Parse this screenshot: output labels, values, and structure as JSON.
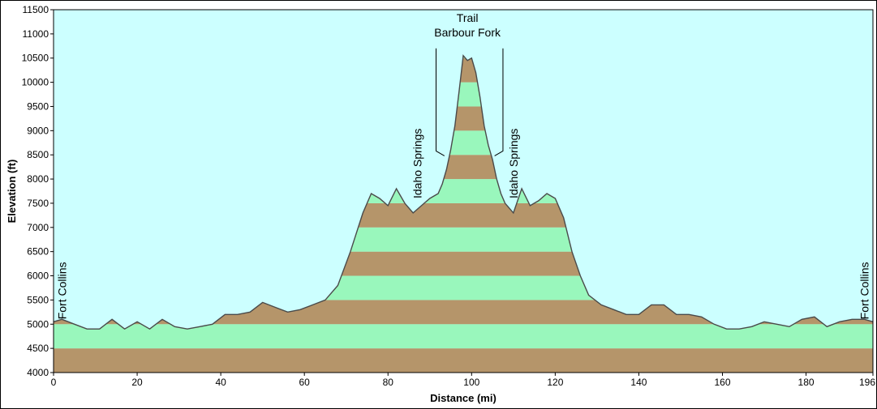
{
  "chart_data": {
    "type": "area",
    "xlabel": "Distance  (mi)",
    "ylabel": "Elevation (ft)",
    "xlim": [
      0,
      196
    ],
    "ylim": [
      4000,
      11500
    ],
    "x_ticks": [
      "0",
      "20",
      "40",
      "60",
      "80",
      "100",
      "120",
      "140",
      "160",
      "180",
      "196"
    ],
    "y_ticks": [
      "4000",
      "4500",
      "5000",
      "5500",
      "6000",
      "6500",
      "7000",
      "7500",
      "8000",
      "8500",
      "9000",
      "9500",
      "10000",
      "10500",
      "11000",
      "11500"
    ],
    "band_interval": 500,
    "grid": false,
    "colors": {
      "background": "#ccffff",
      "band_a": "#b5956a",
      "band_b": "#99f7bc",
      "outline": "#4a4a4a"
    },
    "annotations": [
      {
        "text": "Fort Collins",
        "x": 2,
        "y": 5100,
        "orientation": "vertical"
      },
      {
        "text": "Idaho Springs",
        "x": 87,
        "y": 7600,
        "orientation": "vertical"
      },
      {
        "text": "Idaho Springs",
        "x": 110,
        "y": 7600,
        "orientation": "vertical"
      },
      {
        "text": "Fort Collins",
        "x": 194,
        "y": 5100,
        "orientation": "vertical"
      },
      {
        "text": "Trail",
        "x": 99,
        "y": 11250,
        "orientation": "horizontal"
      },
      {
        "text": "Barbour Fork",
        "x": 99,
        "y": 10950,
        "orientation": "horizontal"
      }
    ],
    "series": [
      {
        "x": [
          0,
          2,
          5,
          8,
          11,
          14,
          17,
          20,
          23,
          26,
          29,
          32,
          35,
          38,
          41,
          44,
          47,
          50,
          53,
          56,
          59,
          62,
          65,
          68,
          71,
          74,
          76,
          78,
          80,
          82,
          84,
          86,
          88,
          90,
          92,
          93,
          94,
          95,
          96,
          97,
          98,
          99,
          100,
          101,
          102,
          103,
          104,
          105,
          106,
          107,
          108,
          110,
          112,
          114,
          116,
          118,
          120,
          122,
          124,
          126,
          128,
          131,
          134,
          137,
          140,
          143,
          146,
          149,
          152,
          155,
          158,
          161,
          164,
          167,
          170,
          173,
          176,
          179,
          182,
          185,
          188,
          191,
          194,
          196
        ],
        "y": [
          5050,
          5100,
          5000,
          4900,
          4900,
          5100,
          4900,
          5050,
          4900,
          5100,
          4950,
          4900,
          4950,
          5000,
          5200,
          5200,
          5250,
          5450,
          5350,
          5250,
          5300,
          5400,
          5500,
          5800,
          6500,
          7300,
          7700,
          7600,
          7450,
          7800,
          7500,
          7300,
          7450,
          7600,
          7700,
          7900,
          8200,
          8600,
          9100,
          9800,
          10550,
          10450,
          10500,
          10200,
          9700,
          9100,
          8700,
          8400,
          8000,
          7700,
          7500,
          7300,
          7800,
          7450,
          7550,
          7700,
          7600,
          7200,
          6500,
          6000,
          5600,
          5400,
          5300,
          5200,
          5200,
          5400,
          5400,
          5200,
          5200,
          5150,
          5000,
          4900,
          4900,
          4950,
          5050,
          5000,
          4950,
          5100,
          5150,
          4950,
          5050,
          5100,
          5100,
          5050
        ]
      }
    ]
  }
}
